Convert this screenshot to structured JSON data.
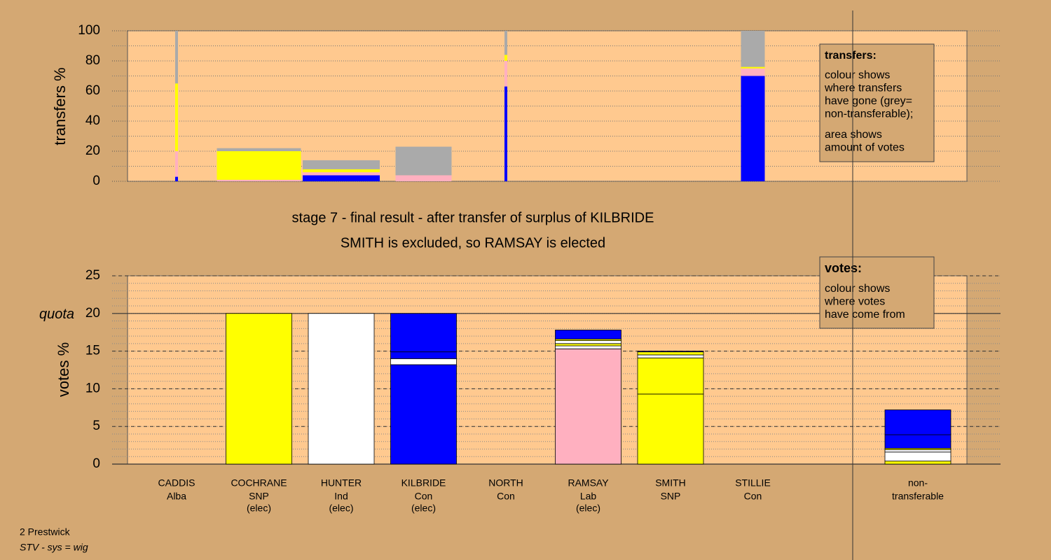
{
  "chart_data": [
    {
      "type": "transfers",
      "ylabel": "transfers %",
      "ylim": [
        0,
        100
      ],
      "yticks": [
        0,
        20,
        40,
        60,
        80,
        100
      ],
      "minor_grid_step": 10,
      "columns": [
        {
          "votes": 0.1,
          "segments": [
            {
              "color": "#0000ff",
              "value": 3
            },
            {
              "color": "#ffb0c0",
              "value": 17
            },
            {
              "color": "#ffff00",
              "value": 45
            },
            {
              "color": "#aaaaaa",
              "value": 35
            }
          ]
        },
        {
          "votes": 3.0,
          "segments": [
            {
              "color": "#ffb0c0",
              "value": 1
            },
            {
              "color": "#ffff00",
              "value": 19
            },
            {
              "color": "#aaaaaa",
              "value": 2
            }
          ]
        },
        {
          "votes": 2.75,
          "segments": [
            {
              "color": "#0000ff",
              "value": 4
            },
            {
              "color": "#ffb0c0",
              "value": 2
            },
            {
              "color": "#ffff00",
              "value": 2
            },
            {
              "color": "#aaaaaa",
              "value": 6
            }
          ]
        },
        {
          "votes": 2.0,
          "segments": [
            {
              "color": "#ffb0c0",
              "value": 4
            },
            {
              "color": "#aaaaaa",
              "value": 19
            }
          ]
        },
        {
          "votes": 0.1,
          "segments": [
            {
              "color": "#0000ff",
              "value": 63
            },
            {
              "color": "#ffb0c0",
              "value": 17
            },
            {
              "color": "#ffff00",
              "value": 4
            },
            {
              "color": "#aaaaaa",
              "value": 16
            }
          ]
        },
        null,
        null,
        {
          "votes": 0.85,
          "segments": [
            {
              "color": "#0000ff",
              "value": 70
            },
            {
              "color": "#ffb0c0",
              "value": 5
            },
            {
              "color": "#ffff00",
              "value": 1
            },
            {
              "color": "#aaaaaa",
              "value": 24
            }
          ]
        }
      ],
      "legend": {
        "title": "transfers:",
        "lines": [
          "colour shows",
          "where transfers",
          "have gone (grey=",
          "non-transferable);"
        ],
        "lines2": [
          "area shows",
          "amount of votes"
        ]
      }
    },
    {
      "type": "votes",
      "title": "stage 7 - final result - after transfer of surplus of KILBRIDE",
      "subtitle": "SMITH is excluded, so RAMSAY is elected",
      "ylabel": "votes %",
      "ylim": [
        0,
        25
      ],
      "yticks": [
        0,
        5,
        10,
        15,
        20,
        25
      ],
      "minor_grid_step": 1,
      "quota": 20,
      "quota_label": "quota",
      "categories": [
        "CADDIS",
        "COCHRANE",
        "HUNTER",
        "KILBRIDE",
        "NORTH",
        "RAMSAY",
        "SMITH",
        "STILLIE"
      ],
      "parties": [
        "Alba",
        "SNP",
        "Ind",
        "Con",
        "Con",
        "Lab",
        "SNP",
        "Con"
      ],
      "status": [
        null,
        "(elec)",
        "(elec)",
        "(elec)",
        null,
        "(elec)",
        null,
        null
      ],
      "stacks": [
        [
          {
            "color": "#ffff00",
            "value": 0
          }
        ],
        [
          {
            "color": "#ffff00",
            "value": 20
          }
        ],
        [
          {
            "color": "#ffffff",
            "value": 20
          }
        ],
        [
          {
            "color": "#0000ff",
            "value": 13.2
          },
          {
            "color": "#ffffff",
            "value": 0.8
          },
          {
            "color": "#0000ff",
            "value": 0.9
          },
          {
            "color": "#0000ff",
            "value": 5.1
          }
        ],
        [
          {
            "color": "#0000ff",
            "value": 0
          }
        ],
        [
          {
            "color": "#ffb0c0",
            "value": 15.3
          },
          {
            "color": "#ffffff",
            "value": 0.4
          },
          {
            "color": "#ffff00",
            "value": 0.3
          },
          {
            "color": "#ffffff",
            "value": 0.4
          },
          {
            "color": "#ffff00",
            "value": 0.2
          },
          {
            "color": "#0000ff",
            "value": 1.2
          }
        ],
        [
          {
            "color": "#ffff00",
            "value": 9.3
          },
          {
            "color": "#ffff00",
            "value": 4.8
          },
          {
            "color": "#ffffff",
            "value": 0.4
          },
          {
            "color": "#ffff00",
            "value": 0.4
          },
          {
            "color": "#0000ff",
            "value": 0.1
          }
        ],
        [
          {
            "color": "#0000ff",
            "value": 0
          }
        ]
      ],
      "nontransferable": {
        "label": [
          "non-",
          "transferable"
        ],
        "segments": [
          {
            "color": "#ffff00",
            "value": 0.4
          },
          {
            "color": "#ffffff",
            "value": 1.2
          },
          {
            "color": "#ffffff",
            "value": 0.3
          },
          {
            "color": "#ffff00",
            "value": 0.2
          },
          {
            "color": "#0000ff",
            "value": 1.8
          },
          {
            "color": "#0000ff",
            "value": 3.3
          }
        ]
      },
      "legend": {
        "title": "votes:",
        "lines": [
          "colour shows",
          "where votes",
          "have come from"
        ]
      }
    }
  ],
  "footer": {
    "area": "2 Prestwick",
    "system": "STV - sys = wig"
  }
}
